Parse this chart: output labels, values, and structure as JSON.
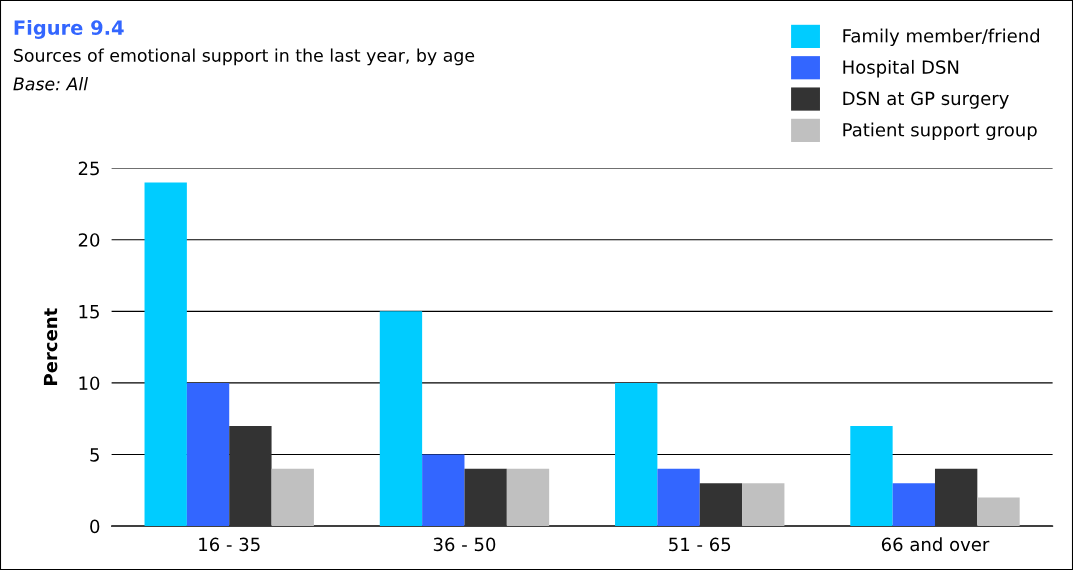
{
  "chart_data": {
    "type": "bar",
    "title": "Figure 9.4",
    "subtitle": "Sources of emotional support in the last year, by age",
    "annotations": [
      "Base: All"
    ],
    "ylabel": "Percent",
    "categories": [
      "16 - 35",
      "36 - 50",
      "51 - 65",
      "66 and over"
    ],
    "series": [
      {
        "name": "Family member/friend",
        "color": "#00ccff",
        "values": [
          24,
          15,
          10,
          7
        ]
      },
      {
        "name": "Hospital DSN",
        "color": "#3366ff",
        "values": [
          10,
          5,
          4,
          3
        ]
      },
      {
        "name": "DSN at GP surgery",
        "color": "#333333",
        "values": [
          7,
          4,
          3,
          4
        ]
      },
      {
        "name": "Patient support group",
        "color": "#c0c0c0",
        "values": [
          4,
          4,
          3,
          2
        ]
      }
    ],
    "ylim": [
      0,
      25
    ],
    "yticks": [
      0,
      5,
      10,
      15,
      20,
      25
    ],
    "grid": "y",
    "legend": "top right"
  }
}
